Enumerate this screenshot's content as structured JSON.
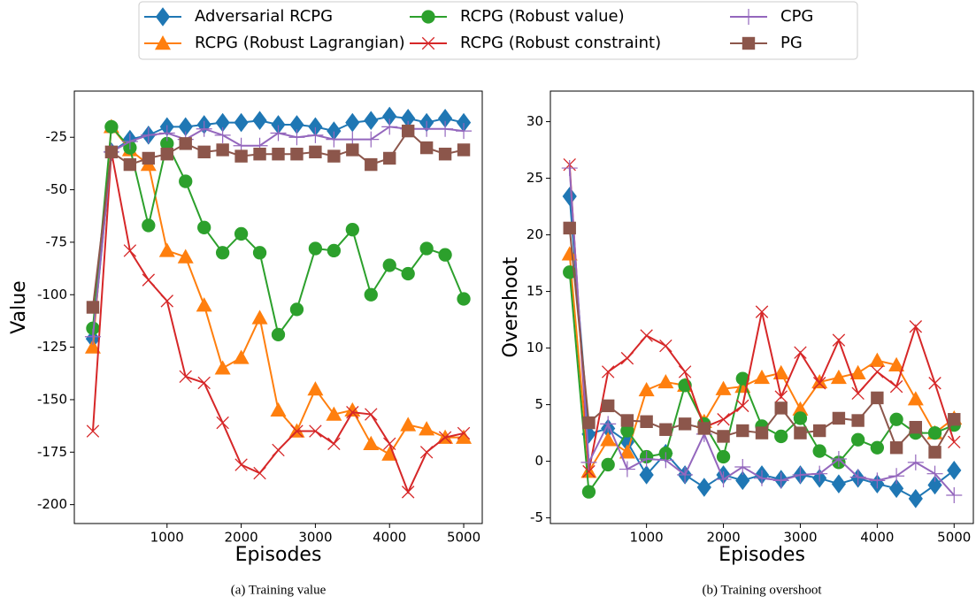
{
  "chart_data": [
    {
      "type": "line",
      "ylabel": "Value",
      "xlabel": "Episodes",
      "caption": "(a) Training value",
      "x": [
        0,
        250,
        500,
        750,
        1000,
        1250,
        1500,
        1750,
        2000,
        2250,
        2500,
        2750,
        3000,
        3250,
        3500,
        3750,
        4000,
        4250,
        4500,
        4750,
        5000
      ],
      "xlim": [
        -250,
        5250
      ],
      "xticks": [
        1000,
        2000,
        3000,
        4000,
        5000
      ],
      "ylim": [
        -209,
        -3
      ],
      "yticks": [
        -200,
        -175,
        -150,
        -125,
        -100,
        -75,
        -50,
        -25
      ],
      "grid": false,
      "series": [
        {
          "name": "Adversarial RCPG",
          "color": "#1f77b4",
          "marker": "diamond",
          "values": [
            -121,
            -32,
            -26,
            -24,
            -20,
            -20,
            -19,
            -18,
            -18,
            -17,
            -19,
            -19,
            -20,
            -22,
            -18,
            -17,
            -15,
            -16,
            -18,
            -16,
            -18
          ]
        },
        {
          "name": "RCPG (Robust Lagrangian)",
          "color": "#ff7f0e",
          "marker": "triangle",
          "values": [
            -125,
            -20,
            -31,
            -38,
            -79,
            -82,
            -105,
            -135,
            -130,
            -111,
            -155,
            -165,
            -145,
            -157,
            -155,
            -171,
            -176,
            -162,
            -164,
            -168,
            -168
          ]
        },
        {
          "name": "RCPG (Robust value)",
          "color": "#2ca02c",
          "marker": "circle",
          "values": [
            -116,
            -20,
            -30,
            -67,
            -28,
            -46,
            -68,
            -80,
            -71,
            -80,
            -119,
            -107,
            -78,
            -79,
            -69,
            -100,
            -86,
            -90,
            -78,
            -81,
            -102
          ]
        },
        {
          "name": "RCPG (Robust constraint)",
          "color": "#d62728",
          "marker": "x",
          "values": [
            -165,
            -32,
            -79,
            -93,
            -103,
            -139,
            -142,
            -161,
            -181,
            -185,
            -174,
            -165,
            -165,
            -171,
            -156,
            -157,
            -171,
            -194,
            -175,
            -168,
            -166
          ]
        },
        {
          "name": "CPG",
          "color": "#9467bd",
          "marker": "plus",
          "values": [
            -120,
            -32,
            -27,
            -24,
            -23,
            -26,
            -21,
            -24,
            -29,
            -29,
            -23,
            -25,
            -24,
            -26,
            -26,
            -26,
            -20,
            -21,
            -21,
            -21,
            -22
          ]
        },
        {
          "name": "PG",
          "color": "#8c564b",
          "marker": "square",
          "values": [
            -106,
            -32,
            -38,
            -35,
            -33,
            -28,
            -32,
            -31,
            -34,
            -33,
            -33,
            -33,
            -32,
            -34,
            -31,
            -38,
            -35,
            -22,
            -30,
            -33,
            -31
          ]
        }
      ]
    },
    {
      "type": "line",
      "ylabel": "Overshoot",
      "xlabel": "Episodes",
      "caption": "(b) Training overshoot",
      "x": [
        0,
        250,
        500,
        750,
        1000,
        1250,
        1500,
        1750,
        2000,
        2250,
        2500,
        2750,
        3000,
        3250,
        3500,
        3750,
        4000,
        4250,
        4500,
        4750,
        5000
      ],
      "xlim": [
        -250,
        5250
      ],
      "xticks": [
        1000,
        2000,
        3000,
        4000,
        5000
      ],
      "ylim": [
        -5.5,
        32.7
      ],
      "yticks": [
        -5,
        0,
        5,
        10,
        15,
        20,
        25,
        30
      ],
      "grid": false,
      "series": [
        {
          "color": "#1f77b4",
          "marker": "diamond",
          "values": [
            23.4,
            2.4,
            2.9,
            1.7,
            -1.2,
            0.7,
            -1.2,
            -2.3,
            -1.2,
            -1.7,
            -1.2,
            -1.6,
            -1.2,
            -1.5,
            -2.0,
            -1.5,
            -2.0,
            -2.4,
            -3.3,
            -2.1,
            -0.8
          ]
        },
        {
          "color": "#ff7f0e",
          "marker": "triangle",
          "values": [
            18.3,
            -0.9,
            1.9,
            0.8,
            6.3,
            7.0,
            6.7,
            3.5,
            6.4,
            6.6,
            7.4,
            7.8,
            4.6,
            7.0,
            7.4,
            7.8,
            8.9,
            8.5,
            5.5,
            2.5,
            3.8
          ]
        },
        {
          "color": "#2ca02c",
          "marker": "circle",
          "values": [
            16.7,
            -2.7,
            -0.3,
            2.7,
            0.4,
            0.7,
            6.7,
            3.3,
            0.4,
            7.3,
            3.1,
            2.2,
            3.8,
            0.9,
            -0.1,
            1.9,
            1.2,
            3.7,
            2.5,
            2.5,
            3.2
          ]
        },
        {
          "color": "#d62728",
          "marker": "x",
          "values": [
            26.2,
            -0.9,
            7.9,
            9.1,
            11.1,
            10.2,
            7.9,
            3.0,
            3.7,
            4.9,
            13.2,
            5.7,
            9.6,
            6.9,
            10.7,
            6.0,
            7.9,
            6.6,
            11.9,
            6.9,
            1.7
          ]
        },
        {
          "color": "#9467bd",
          "marker": "plus",
          "values": [
            25.9,
            -0.1,
            3.3,
            -0.7,
            0.2,
            0.1,
            -1.2,
            2.4,
            -1.6,
            -0.5,
            -1.5,
            -1.7,
            -1.2,
            -1.1,
            0.2,
            -1.4,
            -1.7,
            -1.3,
            -0.1,
            -1.1,
            -3.0
          ]
        },
        {
          "color": "#8c564b",
          "marker": "square",
          "values": [
            20.6,
            3.4,
            4.9,
            3.6,
            3.5,
            2.8,
            3.3,
            2.9,
            2.2,
            2.7,
            2.5,
            4.7,
            2.5,
            2.7,
            3.8,
            3.6,
            5.6,
            1.2,
            3.0,
            0.8,
            3.7
          ]
        }
      ]
    }
  ]
}
